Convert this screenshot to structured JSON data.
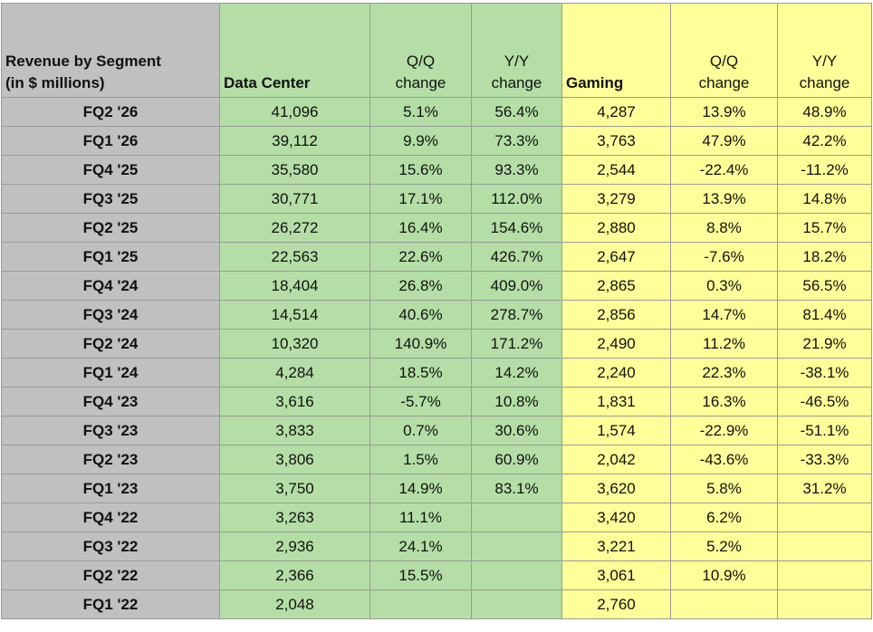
{
  "table": {
    "header": [
      [
        "Revenue by Segment",
        "(in $ millions)"
      ],
      [
        "Data Center"
      ],
      [
        "Q/Q",
        "change"
      ],
      [
        "Y/Y",
        "change"
      ],
      [
        "Gaming"
      ],
      [
        "Q/Q",
        "change"
      ],
      [
        "Y/Y",
        "change"
      ]
    ],
    "rows": [
      [
        "FQ2 '26",
        "41,096",
        "5.1%",
        "56.4%",
        "4,287",
        "13.9%",
        "48.9%"
      ],
      [
        "FQ1 '26",
        "39,112",
        "9.9%",
        "73.3%",
        "3,763",
        "47.9%",
        "42.2%"
      ],
      [
        "FQ4 '25",
        "35,580",
        "15.6%",
        "93.3%",
        "2,544",
        "-22.4%",
        "-11.2%"
      ],
      [
        "FQ3 '25",
        "30,771",
        "17.1%",
        "112.0%",
        "3,279",
        "13.9%",
        "14.8%"
      ],
      [
        "FQ2 '25",
        "26,272",
        "16.4%",
        "154.6%",
        "2,880",
        "8.8%",
        "15.7%"
      ],
      [
        "FQ1 '25",
        "22,563",
        "22.6%",
        "426.7%",
        "2,647",
        "-7.6%",
        "18.2%"
      ],
      [
        "FQ4 '24",
        "18,404",
        "26.8%",
        "409.0%",
        "2,865",
        "0.3%",
        "56.5%"
      ],
      [
        "FQ3 '24",
        "14,514",
        "40.6%",
        "278.7%",
        "2,856",
        "14.7%",
        "81.4%"
      ],
      [
        "FQ2 '24",
        "10,320",
        "140.9%",
        "171.2%",
        "2,490",
        "11.2%",
        "21.9%"
      ],
      [
        "FQ1 '24",
        "4,284",
        "18.5%",
        "14.2%",
        "2,240",
        "22.3%",
        "-38.1%"
      ],
      [
        "FQ4 '23",
        "3,616",
        "-5.7%",
        "10.8%",
        "1,831",
        "16.3%",
        "-46.5%"
      ],
      [
        "FQ3 '23",
        "3,833",
        "0.7%",
        "30.6%",
        "1,574",
        "-22.9%",
        "-51.1%"
      ],
      [
        "FQ2 '23",
        "3,806",
        "1.5%",
        "60.9%",
        "2,042",
        "-43.6%",
        "-33.3%"
      ],
      [
        "FQ1 '23",
        "3,750",
        "14.9%",
        "83.1%",
        "3,620",
        "5.8%",
        "31.2%"
      ],
      [
        "FQ4 '22",
        "3,263",
        "11.1%",
        null,
        "3,420",
        "6.2%",
        null
      ],
      [
        "FQ3 '22",
        "2,936",
        "24.1%",
        null,
        "3,221",
        "5.2%",
        null
      ],
      [
        "FQ2 '22",
        "2,366",
        "15.5%",
        null,
        "3,061",
        "10.9%",
        null
      ],
      [
        "FQ1 '22",
        "2,048",
        null,
        null,
        "2,760",
        null,
        null
      ]
    ]
  }
}
